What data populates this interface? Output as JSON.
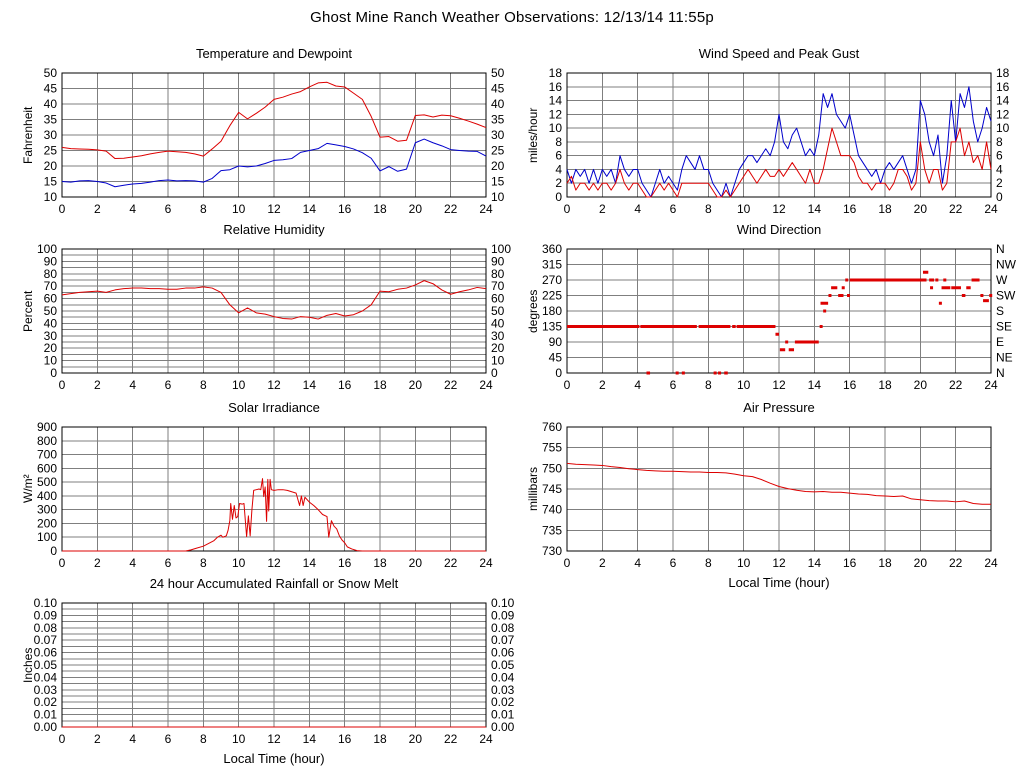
{
  "page_title": "Ghost Mine Ranch Weather Observations: 12/13/14 11:55p",
  "colors": {
    "series_red": "#dd0000",
    "series_blue": "#0000cc",
    "grid": "#7f7f7f",
    "axis": "#000000",
    "text": "#000000"
  },
  "x_axis": {
    "label": "Local Time (hour)",
    "lim": [
      0,
      24
    ],
    "ticks": [
      0,
      2,
      4,
      6,
      8,
      10,
      12,
      14,
      16,
      18,
      20,
      22,
      24
    ]
  },
  "chart_data": [
    {
      "id": "temperature-dewpoint",
      "type": "line",
      "title": "Temperature and Dewpoint",
      "ylabel": "Fahrenheit",
      "xlabel": "",
      "ylim": [
        10,
        50
      ],
      "yticks": [
        10,
        15,
        20,
        25,
        30,
        35,
        40,
        45,
        50
      ],
      "ydec": 0,
      "grid_ystep": 5,
      "right_labels": "same",
      "series": [
        {
          "name": "Temperature",
          "color": "#dd0000",
          "x0": 0,
          "dx": 0.5,
          "values": [
            26.0,
            25.6,
            25.5,
            25.4,
            25.2,
            24.8,
            22.4,
            22.5,
            22.9,
            23.3,
            23.9,
            24.4,
            24.8,
            24.6,
            24.4,
            23.9,
            23.2,
            25.5,
            28.0,
            33.0,
            37.3,
            35.2,
            37.0,
            39.0,
            41.5,
            42.2,
            43.2,
            44.0,
            45.5,
            46.8,
            47.0,
            45.8,
            45.5,
            43.5,
            41.5,
            36.0,
            29.3,
            29.5,
            28.0,
            28.3,
            36.3,
            36.5,
            35.8,
            36.4,
            36.2,
            35.4,
            34.5,
            33.5,
            32.4
          ]
        },
        {
          "name": "Dewpoint",
          "color": "#0000cc",
          "x0": 0,
          "dx": 0.5,
          "values": [
            15.0,
            14.8,
            15.2,
            15.3,
            15.0,
            14.5,
            13.3,
            13.8,
            14.2,
            14.4,
            14.8,
            15.3,
            15.5,
            15.2,
            15.3,
            15.2,
            14.8,
            16.0,
            18.5,
            18.8,
            20.0,
            19.7,
            20.0,
            20.8,
            21.8,
            22.0,
            22.4,
            24.4,
            25.0,
            25.6,
            27.3,
            26.8,
            26.3,
            25.5,
            24.3,
            22.5,
            18.4,
            19.8,
            18.3,
            19.0,
            27.5,
            28.7,
            27.5,
            26.5,
            25.3,
            25.0,
            24.8,
            24.7,
            23.2
          ]
        }
      ]
    },
    {
      "id": "wind-speed-gust",
      "type": "line",
      "title": "Wind Speed and Peak Gust",
      "ylabel": "miles/hour",
      "xlabel": "",
      "ylim": [
        0,
        18
      ],
      "yticks": [
        0,
        2,
        4,
        6,
        8,
        10,
        12,
        14,
        16,
        18
      ],
      "ydec": 0,
      "grid_ystep": 2,
      "right_labels": "same",
      "series": [
        {
          "name": "Peak Gust",
          "color": "#0000cc",
          "x0": 0,
          "dx": 0.25,
          "values": [
            4,
            2,
            4,
            3,
            4,
            2,
            4,
            2,
            4,
            3,
            4,
            2,
            6,
            4,
            3,
            4,
            4,
            2,
            1,
            0,
            2,
            4,
            2,
            3,
            2,
            1,
            4,
            6,
            5,
            4,
            6,
            4,
            4,
            2,
            1,
            0,
            2,
            0,
            2,
            4,
            5,
            6,
            6,
            5,
            6,
            7,
            6,
            8,
            12,
            8,
            7,
            9,
            10,
            8,
            6,
            7,
            6,
            9,
            15,
            13,
            15,
            12,
            11,
            10,
            12,
            9,
            6,
            5,
            4,
            3,
            4,
            2,
            4,
            5,
            4,
            5,
            6,
            4,
            2,
            4,
            14,
            12,
            8,
            6,
            9,
            2,
            6,
            14,
            8,
            15,
            13,
            16,
            11,
            8,
            10,
            13,
            11
          ]
        },
        {
          "name": "Wind Speed",
          "color": "#dd0000",
          "x0": 0,
          "dx": 0.25,
          "values": [
            2,
            3,
            1,
            2,
            2,
            1,
            2,
            1,
            2,
            2,
            1,
            2,
            4,
            2,
            1,
            2,
            2,
            1,
            0,
            0,
            1,
            2,
            1,
            2,
            1,
            0,
            2,
            2,
            2,
            2,
            2,
            2,
            2,
            1,
            0,
            0,
            1,
            0,
            1,
            2,
            3,
            4,
            3,
            2,
            3,
            4,
            3,
            3,
            4,
            3,
            4,
            5,
            4,
            3,
            2,
            4,
            2,
            2,
            4,
            7,
            10,
            8,
            6,
            6,
            6,
            5,
            3,
            2,
            2,
            1,
            2,
            2,
            2,
            1,
            2,
            4,
            4,
            3,
            1,
            2,
            8,
            4,
            2,
            4,
            4,
            1,
            2,
            8,
            8,
            10,
            6,
            8,
            5,
            6,
            4,
            8,
            4
          ]
        }
      ]
    },
    {
      "id": "relative-humidity",
      "type": "line",
      "title": "Relative Humidity",
      "ylabel": "Percent",
      "xlabel": "",
      "ylim": [
        0,
        100
      ],
      "yticks": [
        0,
        10,
        20,
        30,
        40,
        50,
        60,
        70,
        80,
        90,
        100
      ],
      "ydec": 0,
      "grid_ystep": 5,
      "right_labels": "same",
      "series": [
        {
          "name": "Relative Humidity",
          "color": "#dd0000",
          "x0": 0,
          "dx": 0.5,
          "values": [
            63,
            64,
            65,
            65.5,
            66,
            65,
            67,
            68,
            68.5,
            68.5,
            68,
            68,
            67.5,
            67.5,
            68.5,
            68.5,
            69.5,
            68.5,
            65,
            55,
            48.5,
            52.5,
            48.5,
            47.5,
            45.5,
            44,
            43.5,
            45.5,
            45,
            43.5,
            46.5,
            48,
            46,
            47,
            50,
            55,
            66,
            65.5,
            67.5,
            68.5,
            71,
            74.5,
            72,
            67,
            63.5,
            65.5,
            67,
            69,
            68
          ]
        }
      ]
    },
    {
      "id": "wind-direction",
      "type": "scatter",
      "title": "Wind Direction",
      "ylabel": "degrees",
      "xlabel": "",
      "ylim": [
        0,
        360
      ],
      "yticks": [
        0,
        45,
        90,
        135,
        180,
        225,
        270,
        315,
        360
      ],
      "ydec": 0,
      "grid_ystep": 45,
      "right_labels": [
        "N",
        "NE",
        "E",
        "SE",
        "S",
        "SW",
        "W",
        "NW",
        "N"
      ],
      "series": [
        {
          "name": "Wind Direction",
          "color": "#dd0000",
          "segments": [
            [
              0,
              4.1,
              135
            ],
            [
              4.15,
              7.35,
              135
            ],
            [
              7.45,
              9.25,
              135
            ],
            [
              9.35,
              9.55,
              135
            ],
            [
              9.6,
              11.8,
              135
            ],
            [
              4.5,
              4.7,
              0
            ],
            [
              6.15,
              6.3,
              0
            ],
            [
              6.5,
              6.62,
              0
            ],
            [
              8.3,
              8.45,
              0
            ],
            [
              8.55,
              8.7,
              0
            ],
            [
              8.9,
              9.1,
              0
            ],
            [
              11.8,
              12.0,
              112.5
            ],
            [
              12.05,
              12.35,
              67.5
            ],
            [
              12.55,
              12.85,
              67.5
            ],
            [
              12.35,
              12.5,
              90
            ],
            [
              12.9,
              14.25,
              90
            ],
            [
              14.3,
              14.45,
              135
            ],
            [
              14.5,
              14.62,
              180
            ],
            [
              14.35,
              14.78,
              202.5
            ],
            [
              14.8,
              14.95,
              225
            ],
            [
              14.95,
              15.3,
              247.5
            ],
            [
              15.35,
              15.65,
              225
            ],
            [
              15.55,
              15.72,
              247.5
            ],
            [
              15.75,
              15.87,
              270
            ],
            [
              15.85,
              16.0,
              225
            ],
            [
              16.0,
              20.35,
              270
            ],
            [
              20.15,
              20.45,
              292.5
            ],
            [
              20.5,
              20.78,
              270
            ],
            [
              20.85,
              21.0,
              270
            ],
            [
              20.55,
              20.68,
              247.5
            ],
            [
              21.05,
              21.17,
              202.5
            ],
            [
              21.2,
              21.7,
              247.5
            ],
            [
              21.3,
              21.45,
              270
            ],
            [
              21.75,
              22.3,
              247.5
            ],
            [
              22.35,
              22.55,
              225
            ],
            [
              22.6,
              22.85,
              247.5
            ],
            [
              22.9,
              23.35,
              270
            ],
            [
              23.4,
              23.52,
              225
            ],
            [
              23.55,
              23.88,
              210
            ],
            [
              23.9,
              24.0,
              225
            ]
          ]
        }
      ]
    },
    {
      "id": "solar-irradiance",
      "type": "line",
      "title": "Solar Irradiance",
      "ylabel": "W/m²",
      "xlabel": "",
      "ylim": [
        0,
        900
      ],
      "yticks": [
        0,
        100,
        200,
        300,
        400,
        500,
        600,
        700,
        800,
        900
      ],
      "ydec": 0,
      "grid_ystep": 100,
      "right_labels": "none",
      "series": [
        {
          "name": "Solar Irradiance",
          "color": "#dd0000",
          "points": [
            [
              0,
              0
            ],
            [
              7,
              0
            ],
            [
              7.3,
              8
            ],
            [
              7.6,
              20
            ],
            [
              8,
              35
            ],
            [
              8.3,
              55
            ],
            [
              8.6,
              75
            ],
            [
              8.8,
              100
            ],
            [
              9,
              115
            ],
            [
              9.1,
              100
            ],
            [
              9.3,
              110
            ],
            [
              9.4,
              150
            ],
            [
              9.5,
              220
            ],
            [
              9.55,
              345
            ],
            [
              9.65,
              230
            ],
            [
              9.75,
              330
            ],
            [
              9.85,
              240
            ],
            [
              9.95,
              250
            ],
            [
              10.05,
              345
            ],
            [
              10.2,
              340
            ],
            [
              10.3,
              345
            ],
            [
              10.45,
              105
            ],
            [
              10.55,
              255
            ],
            [
              10.65,
              110
            ],
            [
              10.75,
              300
            ],
            [
              10.85,
              440
            ],
            [
              11,
              445
            ],
            [
              11.15,
              450
            ],
            [
              11.25,
              445
            ],
            [
              11.35,
              525
            ],
            [
              11.42,
              395
            ],
            [
              11.5,
              465
            ],
            [
              11.58,
              215
            ],
            [
              11.65,
              520
            ],
            [
              11.7,
              290
            ],
            [
              11.78,
              520
            ],
            [
              11.85,
              445
            ],
            [
              12,
              440
            ],
            [
              12.25,
              445
            ],
            [
              12.5,
              445
            ],
            [
              12.75,
              440
            ],
            [
              13,
              430
            ],
            [
              13.25,
              420
            ],
            [
              13.45,
              330
            ],
            [
              13.55,
              400
            ],
            [
              13.65,
              330
            ],
            [
              13.75,
              390
            ],
            [
              14,
              355
            ],
            [
              14.25,
              330
            ],
            [
              14.5,
              300
            ],
            [
              14.75,
              265
            ],
            [
              15,
              250
            ],
            [
              15.1,
              100
            ],
            [
              15.25,
              220
            ],
            [
              15.4,
              180
            ],
            [
              15.55,
              160
            ],
            [
              15.7,
              110
            ],
            [
              15.85,
              80
            ],
            [
              16,
              60
            ],
            [
              16.15,
              30
            ],
            [
              16.4,
              15
            ],
            [
              16.7,
              3
            ],
            [
              17,
              0
            ],
            [
              24,
              0
            ]
          ]
        }
      ]
    },
    {
      "id": "air-pressure",
      "type": "line",
      "title": "Air Pressure",
      "ylabel": "millibars",
      "xlabel": "Local Time (hour)",
      "ylim": [
        730,
        760
      ],
      "yticks": [
        730,
        735,
        740,
        745,
        750,
        755,
        760
      ],
      "ydec": 0,
      "grid_ystep": 5,
      "right_labels": "none",
      "series": [
        {
          "name": "Air Pressure",
          "color": "#dd0000",
          "x0": 0,
          "dx": 0.5,
          "values": [
            751.2,
            751.0,
            750.9,
            750.8,
            750.7,
            750.4,
            750.2,
            749.9,
            749.7,
            749.5,
            749.4,
            749.3,
            749.3,
            749.2,
            749.1,
            749.1,
            749.0,
            749.0,
            748.9,
            748.6,
            748.2,
            748.0,
            747.3,
            746.4,
            745.6,
            745.1,
            744.7,
            744.4,
            744.3,
            744.4,
            744.2,
            744.2,
            744.0,
            743.8,
            743.7,
            743.4,
            743.3,
            743.2,
            743.3,
            742.6,
            742.4,
            742.2,
            742.1,
            742.1,
            741.9,
            742.1,
            741.5,
            741.3,
            741.3
          ]
        }
      ]
    },
    {
      "id": "rainfall",
      "type": "line",
      "title": "24 hour Accumulated Rainfall or Snow Melt",
      "ylabel": "Inches",
      "xlabel": "Local Time (hour)",
      "ylim": [
        0,
        0.1
      ],
      "yticks": [
        0,
        0.01,
        0.02,
        0.03,
        0.04,
        0.05,
        0.06,
        0.07,
        0.08,
        0.09,
        0.1
      ],
      "ydec": 2,
      "grid_ystep": 0.005,
      "right_labels": "same",
      "series": [
        {
          "name": "Accumulated Rainfall",
          "color": "#dd0000",
          "x0": 0,
          "dx": 24,
          "values": [
            0,
            0
          ]
        }
      ]
    }
  ]
}
